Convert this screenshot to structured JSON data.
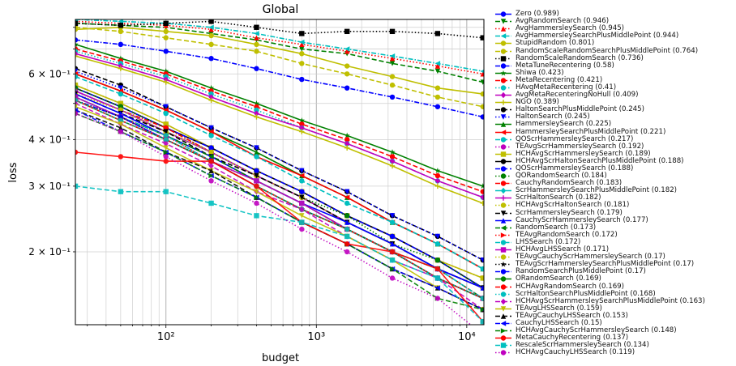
{
  "chart_data": {
    "type": "line",
    "title": "Global",
    "xlabel": "budget",
    "ylabel": "loss",
    "xscale": "log",
    "yscale": "log",
    "xlim": [
      25,
      13000
    ],
    "ylim": [
      0.1275,
      0.84
    ],
    "grid": true,
    "legend_position": "outside-right",
    "x_ticks": [
      {
        "value": 100,
        "label": "10²"
      },
      {
        "value": 1000,
        "label": "10³"
      },
      {
        "value": 10000,
        "label": "10⁴"
      }
    ],
    "y_ticks": [
      {
        "value": 0.2,
        "label": "2 × 10⁻¹"
      },
      {
        "value": 0.3,
        "label": "3 × 10⁻¹"
      },
      {
        "value": 0.4,
        "label": "4 × 10⁻¹"
      },
      {
        "value": 0.6,
        "label": "6 × 10⁻¹"
      }
    ],
    "x": [
      25,
      50,
      100,
      200,
      400,
      800,
      1600,
      3200,
      6400,
      12800
    ],
    "series": [
      {
        "name": "Zero (0.989)",
        "color": "#0000ff",
        "marker": "o",
        "dash": "solid",
        "values": [
          0.86,
          0.86,
          0.86,
          0.86,
          0.86,
          0.86,
          0.86,
          0.86,
          0.86,
          0.86
        ]
      },
      {
        "name": "AvgRandomSearch (0.946)",
        "color": "#008000",
        "marker": "v",
        "dash": "dashed",
        "values": [
          0.82,
          0.81,
          0.8,
          0.77,
          0.74,
          0.7,
          0.68,
          0.64,
          0.61,
          0.57
        ]
      },
      {
        "name": "AvgHammersleySearch (0.945)",
        "color": "#ff0000",
        "marker": "^",
        "dash": "dotted",
        "values": [
          0.83,
          0.82,
          0.81,
          0.79,
          0.75,
          0.72,
          0.69,
          0.66,
          0.63,
          0.6
        ]
      },
      {
        "name": "AvgHammersleySearchPlusMiddlePoint (0.944)",
        "color": "#00bfbf",
        "marker": "<",
        "dash": "dashdot",
        "values": [
          0.84,
          0.83,
          0.82,
          0.8,
          0.77,
          0.73,
          0.7,
          0.67,
          0.64,
          0.61
        ]
      },
      {
        "name": "StupidRandom (0.801)",
        "color": "#bfbf00",
        "marker": "o",
        "dash": "solid",
        "values": [
          0.79,
          0.8,
          0.78,
          0.76,
          0.72,
          0.68,
          0.63,
          0.59,
          0.55,
          0.53
        ]
      },
      {
        "name": "RandomScaleRandomSearchPlusMiddlePoint (0.764)",
        "color": "#bfbf00",
        "marker": "o",
        "dash": "dashed",
        "values": [
          0.8,
          0.78,
          0.75,
          0.72,
          0.69,
          0.64,
          0.6,
          0.56,
          0.52,
          0.49
        ]
      },
      {
        "name": "RandomScaleRandomSearch (0.736)",
        "color": "#000000",
        "marker": "s",
        "dash": "dotted",
        "values": [
          0.82,
          0.81,
          0.82,
          0.83,
          0.8,
          0.77,
          0.78,
          0.78,
          0.77,
          0.75
        ]
      },
      {
        "name": "MetaTuneRecentering (0.58)",
        "color": "#0000ff",
        "marker": "o",
        "dash": "dashdot",
        "values": [
          0.74,
          0.72,
          0.69,
          0.66,
          0.62,
          0.58,
          0.55,
          0.52,
          0.49,
          0.46
        ]
      },
      {
        "name": "Shiwa (0.423)",
        "color": "#008000",
        "marker": "*",
        "dash": "solid",
        "values": [
          0.72,
          0.66,
          0.61,
          0.55,
          0.5,
          0.45,
          0.41,
          0.37,
          0.33,
          0.3
        ]
      },
      {
        "name": "MetaRecentering (0.421)",
        "color": "#ff0000",
        "marker": "o",
        "dash": "dashed",
        "values": [
          0.7,
          0.65,
          0.6,
          0.54,
          0.49,
          0.44,
          0.4,
          0.36,
          0.32,
          0.29
        ]
      },
      {
        "name": "HAvgMetaRecentering (0.41)",
        "color": "#00bfbf",
        "marker": "o",
        "dash": "dotted",
        "values": [
          0.69,
          0.64,
          0.59,
          0.53,
          0.48,
          0.43,
          0.39,
          0.35,
          0.31,
          0.28
        ]
      },
      {
        "name": "AvgMetaRecenteringNoHull (0.409)",
        "color": "#bf00bf",
        "marker": "D",
        "dash": "solid",
        "values": [
          0.68,
          0.63,
          0.58,
          0.52,
          0.47,
          0.43,
          0.39,
          0.35,
          0.31,
          0.28
        ]
      },
      {
        "name": "NGO (0.389)",
        "color": "#bfbf00",
        "marker": "+",
        "dash": "solid",
        "values": [
          0.67,
          0.62,
          0.57,
          0.51,
          0.46,
          0.42,
          0.38,
          0.34,
          0.3,
          0.27
        ]
      },
      {
        "name": "HaltonSearchPlusMiddlePoint (0.245)",
        "color": "#000000",
        "marker": "o",
        "dash": "dashed",
        "values": [
          0.62,
          0.56,
          0.49,
          0.43,
          0.38,
          0.33,
          0.29,
          0.25,
          0.22,
          0.19
        ]
      },
      {
        "name": "HaltonSearch (0.245)",
        "color": "#0000ff",
        "marker": "v",
        "dash": "dotted",
        "values": [
          0.61,
          0.55,
          0.49,
          0.43,
          0.38,
          0.33,
          0.29,
          0.25,
          0.22,
          0.19
        ]
      },
      {
        "name": "HammersleySearch (0.225)",
        "color": "#008000",
        "marker": "^",
        "dash": "solid",
        "values": [
          0.6,
          0.54,
          0.48,
          0.42,
          0.37,
          0.32,
          0.28,
          0.24,
          0.21,
          0.18
        ]
      },
      {
        "name": "HammersleySearchPlusMiddlePoint (0.221)",
        "color": "#ff0000",
        "marker": "<",
        "dash": "solid",
        "values": [
          0.6,
          0.54,
          0.48,
          0.42,
          0.36,
          0.32,
          0.28,
          0.24,
          0.21,
          0.18
        ]
      },
      {
        "name": "QOScrHammersleySearch (0.217)",
        "color": "#00bfbf",
        "marker": "o",
        "dash": "dashed",
        "values": [
          0.59,
          0.53,
          0.47,
          0.41,
          0.36,
          0.31,
          0.27,
          0.24,
          0.21,
          0.18
        ]
      },
      {
        "name": "TEAvgScrHammersleySearch (0.192)",
        "color": "#bf00bf",
        "marker": "o",
        "dash": "dotted",
        "values": [
          0.56,
          0.5,
          0.44,
          0.38,
          0.33,
          0.29,
          0.25,
          0.22,
          0.19,
          0.17
        ]
      },
      {
        "name": "HCHAvgScrHammersleySearch (0.189)",
        "color": "#bfbf00",
        "marker": "s",
        "dash": "solid",
        "values": [
          0.56,
          0.5,
          0.44,
          0.38,
          0.33,
          0.29,
          0.25,
          0.22,
          0.19,
          0.17
        ]
      },
      {
        "name": "HCHAvgScrHaltonSearchPlusMiddlePoint (0.188)",
        "color": "#000000",
        "marker": "o",
        "dash": "solid",
        "values": [
          0.55,
          0.49,
          0.43,
          0.38,
          0.33,
          0.29,
          0.25,
          0.22,
          0.19,
          0.16
        ]
      },
      {
        "name": "QOScrHammersleySearch (0.188)",
        "color": "#0000ff",
        "marker": "o",
        "dash": "dashed",
        "values": [
          0.55,
          0.49,
          0.43,
          0.38,
          0.33,
          0.29,
          0.25,
          0.22,
          0.19,
          0.16
        ]
      },
      {
        "name": "QORandomSearch (0.184)",
        "color": "#008000",
        "marker": "o",
        "dash": "dotted",
        "values": [
          0.55,
          0.49,
          0.43,
          0.37,
          0.32,
          0.28,
          0.25,
          0.21,
          0.19,
          0.16
        ]
      },
      {
        "name": "CauchyRandomSearch (0.183)",
        "color": "#ff0000",
        "marker": "o",
        "dash": "dashdot",
        "values": [
          0.54,
          0.48,
          0.43,
          0.37,
          0.32,
          0.28,
          0.24,
          0.21,
          0.18,
          0.16
        ]
      },
      {
        "name": "ScrHammersleySearchPlusMiddlePoint (0.182)",
        "color": "#00bfbf",
        "marker": "D",
        "dash": "solid",
        "values": [
          0.54,
          0.48,
          0.42,
          0.37,
          0.32,
          0.28,
          0.24,
          0.21,
          0.18,
          0.16
        ]
      },
      {
        "name": "ScrHaltonSearch (0.182)",
        "color": "#bf00bf",
        "marker": "+",
        "dash": "solid",
        "values": [
          0.54,
          0.48,
          0.42,
          0.37,
          0.32,
          0.28,
          0.24,
          0.21,
          0.18,
          0.16
        ]
      },
      {
        "name": "HCHAvgScrHaltonSearch (0.181)",
        "color": "#bfbf00",
        "marker": "o",
        "dash": "dotted",
        "values": [
          0.53,
          0.48,
          0.42,
          0.37,
          0.32,
          0.28,
          0.24,
          0.21,
          0.18,
          0.16
        ]
      },
      {
        "name": "ScrHammersleySearch (0.179)",
        "color": "#000000",
        "marker": "v",
        "dash": "dashed",
        "values": [
          0.53,
          0.47,
          0.42,
          0.36,
          0.32,
          0.28,
          0.24,
          0.21,
          0.18,
          0.16
        ]
      },
      {
        "name": "CauchyScrHammersleySearch (0.177)",
        "color": "#0000ff",
        "marker": "^",
        "dash": "solid",
        "values": [
          0.53,
          0.47,
          0.41,
          0.36,
          0.31,
          0.27,
          0.24,
          0.21,
          0.18,
          0.16
        ]
      },
      {
        "name": "RandomSearch (0.173)",
        "color": "#008000",
        "marker": "<",
        "dash": "dashed",
        "values": [
          0.52,
          0.46,
          0.41,
          0.36,
          0.31,
          0.27,
          0.23,
          0.2,
          0.18,
          0.15
        ]
      },
      {
        "name": "TEAvgRandomSearch (0.172)",
        "color": "#ff0000",
        "marker": ">",
        "dash": "dotted",
        "values": [
          0.52,
          0.46,
          0.41,
          0.35,
          0.31,
          0.27,
          0.23,
          0.2,
          0.18,
          0.15
        ]
      },
      {
        "name": "LHSSearch (0.172)",
        "color": "#00bfbf",
        "marker": "o",
        "dash": "dashdot",
        "values": [
          0.52,
          0.46,
          0.41,
          0.35,
          0.31,
          0.27,
          0.23,
          0.2,
          0.18,
          0.15
        ]
      },
      {
        "name": "HCHAvgLHSSearch (0.171)",
        "color": "#bf00bf",
        "marker": "s",
        "dash": "solid",
        "values": [
          0.52,
          0.46,
          0.4,
          0.35,
          0.31,
          0.27,
          0.23,
          0.2,
          0.17,
          0.15
        ]
      },
      {
        "name": "TEAvgCauchyScrHammersleySearch (0.17)",
        "color": "#bfbf00",
        "marker": "o",
        "dash": "dotted",
        "values": [
          0.51,
          0.46,
          0.4,
          0.35,
          0.3,
          0.26,
          0.23,
          0.2,
          0.17,
          0.15
        ]
      },
      {
        "name": "TEAvgScrHammersleySearchPlusMiddlePoint (0.17)",
        "color": "#000000",
        "marker": "*",
        "dash": "dotted",
        "values": [
          0.51,
          0.46,
          0.4,
          0.35,
          0.3,
          0.26,
          0.23,
          0.2,
          0.17,
          0.15
        ]
      },
      {
        "name": "RandomSearchPlusMiddlePoint (0.17)",
        "color": "#0000ff",
        "marker": "o",
        "dash": "dashdot",
        "values": [
          0.51,
          0.46,
          0.4,
          0.35,
          0.3,
          0.26,
          0.23,
          0.2,
          0.17,
          0.15
        ]
      },
      {
        "name": "ORandomSearch (0.169)",
        "color": "#008000",
        "marker": "o",
        "dash": "solid",
        "values": [
          0.51,
          0.45,
          0.4,
          0.35,
          0.3,
          0.26,
          0.23,
          0.2,
          0.17,
          0.15
        ]
      },
      {
        "name": "HCHAvgRandomSearch (0.169)",
        "color": "#ff0000",
        "marker": "o",
        "dash": "dashed",
        "values": [
          0.51,
          0.45,
          0.4,
          0.35,
          0.3,
          0.26,
          0.23,
          0.2,
          0.17,
          0.15
        ]
      },
      {
        "name": "ScrHaltonSearchPlusMiddlePoint (0.168)",
        "color": "#00bfbf",
        "marker": "o",
        "dash": "dotted",
        "values": [
          0.51,
          0.45,
          0.4,
          0.35,
          0.3,
          0.26,
          0.23,
          0.2,
          0.17,
          0.15
        ]
      },
      {
        "name": "HCHAvgScrHammersleySearchPlusMiddlePoint (0.163)",
        "color": "#bf00bf",
        "marker": "D",
        "dash": "dashed",
        "values": [
          0.5,
          0.44,
          0.39,
          0.34,
          0.29,
          0.26,
          0.22,
          0.19,
          0.17,
          0.14
        ]
      },
      {
        "name": "TEAvgLHSSearch (0.159)",
        "color": "#bfbf00",
        "marker": "v",
        "dash": "solid",
        "values": [
          0.49,
          0.44,
          0.38,
          0.33,
          0.29,
          0.25,
          0.22,
          0.19,
          0.16,
          0.14
        ]
      },
      {
        "name": "TEAvgCauchyLHSSearch (0.153)",
        "color": "#000000",
        "marker": "^",
        "dash": "dashed",
        "values": [
          0.48,
          0.43,
          0.37,
          0.33,
          0.28,
          0.24,
          0.21,
          0.18,
          0.16,
          0.14
        ]
      },
      {
        "name": "CauchyLHSSearch (0.15)",
        "color": "#0000ff",
        "marker": "<",
        "dash": "dashdot",
        "values": [
          0.48,
          0.42,
          0.37,
          0.32,
          0.28,
          0.24,
          0.21,
          0.18,
          0.16,
          0.14
        ]
      },
      {
        "name": "HCHAvgCauchyScrHammersleySearch (0.148)",
        "color": "#008000",
        "marker": ">",
        "dash": "dashed",
        "values": [
          0.47,
          0.42,
          0.37,
          0.32,
          0.28,
          0.24,
          0.21,
          0.18,
          0.15,
          0.14
        ]
      },
      {
        "name": "MetaCauchyRecentering (0.137)",
        "color": "#ff0000",
        "marker": "o",
        "dash": "solid",
        "values": [
          0.37,
          0.36,
          0.35,
          0.35,
          0.3,
          0.24,
          0.21,
          0.2,
          0.18,
          0.13
        ]
      },
      {
        "name": "RescaleScrHammersleySearch (0.134)",
        "color": "#00bfbf",
        "marker": "s",
        "dash": "dashed",
        "values": [
          0.3,
          0.29,
          0.29,
          0.27,
          0.25,
          0.24,
          0.22,
          0.19,
          0.17,
          0.13
        ]
      },
      {
        "name": "HCHAvgCauchyLHSSearch (0.119)",
        "color": "#bf00bf",
        "marker": "o",
        "dash": "dotted",
        "values": [
          0.47,
          0.42,
          0.36,
          0.31,
          0.27,
          0.23,
          0.2,
          0.17,
          0.15,
          0.12
        ]
      }
    ]
  }
}
